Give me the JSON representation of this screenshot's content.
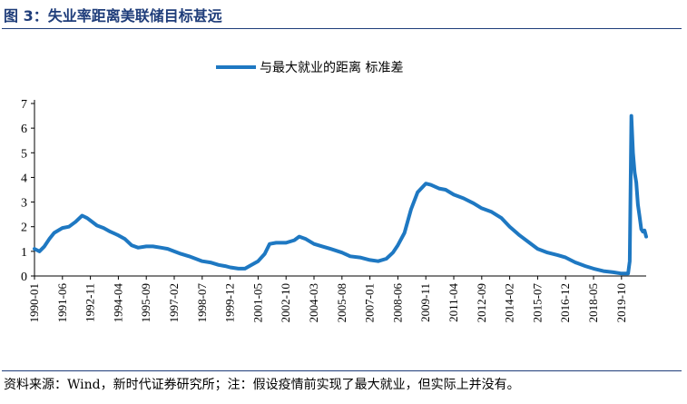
{
  "figure": {
    "label": "图 3：",
    "title": "失业率距离美联储目标甚远",
    "source": "资料来源：Wind，新时代证券研究所；注：假设疫情前实现了最大就业，但实际上并没有。"
  },
  "colors": {
    "series": "#1e78c2",
    "title": "#1f3d7a"
  },
  "chart_data": {
    "type": "line",
    "title": "",
    "xlabel": "",
    "ylabel": "",
    "ylim": [
      0,
      7
    ],
    "yticks": [
      0,
      1,
      2,
      3,
      4,
      5,
      6,
      7
    ],
    "grid": false,
    "legend_position": "top-center",
    "x_tick_labels": [
      "1990-01",
      "1991-06",
      "1992-11",
      "1994-04",
      "1995-09",
      "1997-02",
      "1998-07",
      "1999-12",
      "2001-05",
      "2002-10",
      "2004-03",
      "2005-08",
      "2007-01",
      "2008-06",
      "2009-11",
      "2011-04",
      "2012-09",
      "2014-02",
      "2015-07",
      "2016-12",
      "2018-05",
      "2019-10"
    ],
    "series": [
      {
        "name": "与最大就业的距离 标准差",
        "points": [
          [
            "1990-01",
            1.1
          ],
          [
            "1990-04",
            1.0
          ],
          [
            "1990-07",
            1.2
          ],
          [
            "1990-10",
            1.5
          ],
          [
            "1991-01",
            1.75
          ],
          [
            "1991-06",
            1.95
          ],
          [
            "1991-10",
            2.0
          ],
          [
            "1992-02",
            2.2
          ],
          [
            "1992-06",
            2.45
          ],
          [
            "1992-09",
            2.35
          ],
          [
            "1992-11",
            2.25
          ],
          [
            "1993-03",
            2.05
          ],
          [
            "1993-07",
            1.95
          ],
          [
            "1993-11",
            1.8
          ],
          [
            "1994-04",
            1.65
          ],
          [
            "1994-08",
            1.5
          ],
          [
            "1994-12",
            1.25
          ],
          [
            "1995-04",
            1.15
          ],
          [
            "1995-09",
            1.2
          ],
          [
            "1996-01",
            1.2
          ],
          [
            "1996-06",
            1.15
          ],
          [
            "1996-10",
            1.1
          ],
          [
            "1997-02",
            1.0
          ],
          [
            "1997-06",
            0.9
          ],
          [
            "1997-11",
            0.8
          ],
          [
            "1998-03",
            0.7
          ],
          [
            "1998-07",
            0.6
          ],
          [
            "1998-12",
            0.55
          ],
          [
            "1999-05",
            0.45
          ],
          [
            "1999-09",
            0.4
          ],
          [
            "1999-12",
            0.35
          ],
          [
            "2000-05",
            0.3
          ],
          [
            "2000-09",
            0.3
          ],
          [
            "2001-01",
            0.45
          ],
          [
            "2001-05",
            0.6
          ],
          [
            "2001-09",
            0.9
          ],
          [
            "2001-12",
            1.3
          ],
          [
            "2002-04",
            1.35
          ],
          [
            "2002-10",
            1.35
          ],
          [
            "2003-03",
            1.45
          ],
          [
            "2003-06",
            1.6
          ],
          [
            "2003-10",
            1.5
          ],
          [
            "2004-03",
            1.3
          ],
          [
            "2004-08",
            1.2
          ],
          [
            "2005-01",
            1.1
          ],
          [
            "2005-08",
            0.95
          ],
          [
            "2006-01",
            0.8
          ],
          [
            "2006-07",
            0.75
          ],
          [
            "2007-01",
            0.65
          ],
          [
            "2007-06",
            0.6
          ],
          [
            "2007-11",
            0.7
          ],
          [
            "2008-03",
            0.95
          ],
          [
            "2008-06",
            1.25
          ],
          [
            "2008-10",
            1.75
          ],
          [
            "2009-02",
            2.7
          ],
          [
            "2009-06",
            3.4
          ],
          [
            "2009-11",
            3.75
          ],
          [
            "2010-02",
            3.7
          ],
          [
            "2010-07",
            3.55
          ],
          [
            "2010-11",
            3.5
          ],
          [
            "2011-04",
            3.3
          ],
          [
            "2011-10",
            3.15
          ],
          [
            "2012-04",
            2.95
          ],
          [
            "2012-09",
            2.75
          ],
          [
            "2013-03",
            2.6
          ],
          [
            "2013-09",
            2.35
          ],
          [
            "2014-02",
            2.0
          ],
          [
            "2014-08",
            1.65
          ],
          [
            "2015-02",
            1.35
          ],
          [
            "2015-07",
            1.1
          ],
          [
            "2016-01",
            0.95
          ],
          [
            "2016-07",
            0.85
          ],
          [
            "2016-12",
            0.75
          ],
          [
            "2017-06",
            0.55
          ],
          [
            "2017-12",
            0.4
          ],
          [
            "2018-05",
            0.3
          ],
          [
            "2018-11",
            0.2
          ],
          [
            "2019-05",
            0.15
          ],
          [
            "2019-10",
            0.1
          ],
          [
            "2020-02",
            0.1
          ],
          [
            "2020-03",
            0.6
          ],
          [
            "2020-04",
            6.5
          ],
          [
            "2020-05",
            5.0
          ],
          [
            "2020-06",
            4.2
          ],
          [
            "2020-07",
            3.8
          ],
          [
            "2020-08",
            2.9
          ],
          [
            "2020-09",
            2.4
          ],
          [
            "2020-10",
            1.9
          ],
          [
            "2020-11",
            1.8
          ],
          [
            "2020-12",
            1.85
          ],
          [
            "2021-01",
            1.6
          ]
        ]
      }
    ]
  }
}
